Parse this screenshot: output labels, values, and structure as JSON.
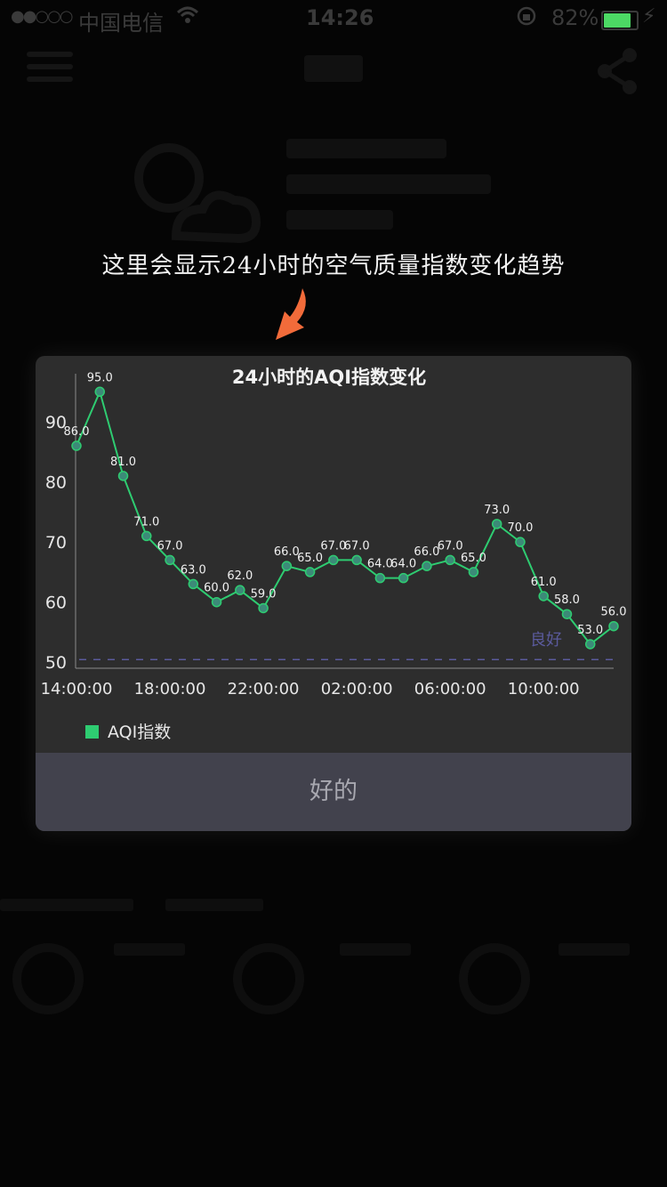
{
  "status_bar": {
    "signal": "●●○○○",
    "carrier": "中国电信",
    "time": "14:26",
    "battery_percent": "82%"
  },
  "hint": {
    "text": "这里会显示24小时的空气质量指数变化趋势",
    "arrow_color": "#f26b3a"
  },
  "dialog": {
    "ok_label": "好的"
  },
  "chart_data": {
    "type": "line",
    "title": "24小时的AQI指数变化",
    "xlabel": "",
    "ylabel": "",
    "x": [
      "14:00:00",
      "15:00:00",
      "16:00:00",
      "17:00:00",
      "18:00:00",
      "19:00:00",
      "20:00:00",
      "21:00:00",
      "22:00:00",
      "23:00:00",
      "00:00:00",
      "01:00:00",
      "02:00:00",
      "03:00:00",
      "04:00:00",
      "05:00:00",
      "06:00:00",
      "07:00:00",
      "08:00:00",
      "09:00:00",
      "10:00:00",
      "11:00:00",
      "12:00:00",
      "13:00:00"
    ],
    "x_tick_labels": [
      "14:00:00",
      "18:00:00",
      "22:00:00",
      "02:00:00",
      "06:00:00",
      "10:00:00"
    ],
    "series": [
      {
        "name": "AQI指数",
        "color": "#2ecc71",
        "values": [
          86,
          95,
          81,
          71,
          67,
          63,
          60,
          62,
          59,
          66,
          65,
          67,
          67,
          64,
          64,
          66,
          67,
          65,
          73,
          70,
          61,
          58,
          53,
          56
        ],
        "labels": [
          "86.0",
          "95.0",
          "81.0",
          "71.0",
          "67.0",
          "63.0",
          "60.0",
          "62.0",
          "59.0",
          "66.0",
          "65.0",
          "67.0",
          "67.0",
          "64.0",
          "64.0",
          "66.0",
          "67.0",
          "65.0",
          "73.0",
          "70.0",
          "61.0",
          "58.0",
          "53.0",
          "56.0"
        ]
      }
    ],
    "y_ticks": [
      "50",
      "60",
      "70",
      "80",
      "90"
    ],
    "ylim": [
      49,
      98
    ],
    "reference_line": {
      "value": 50,
      "label": "良好",
      "color": "#5a5a9c"
    },
    "grid": false,
    "legend_position": "bottom-left"
  }
}
